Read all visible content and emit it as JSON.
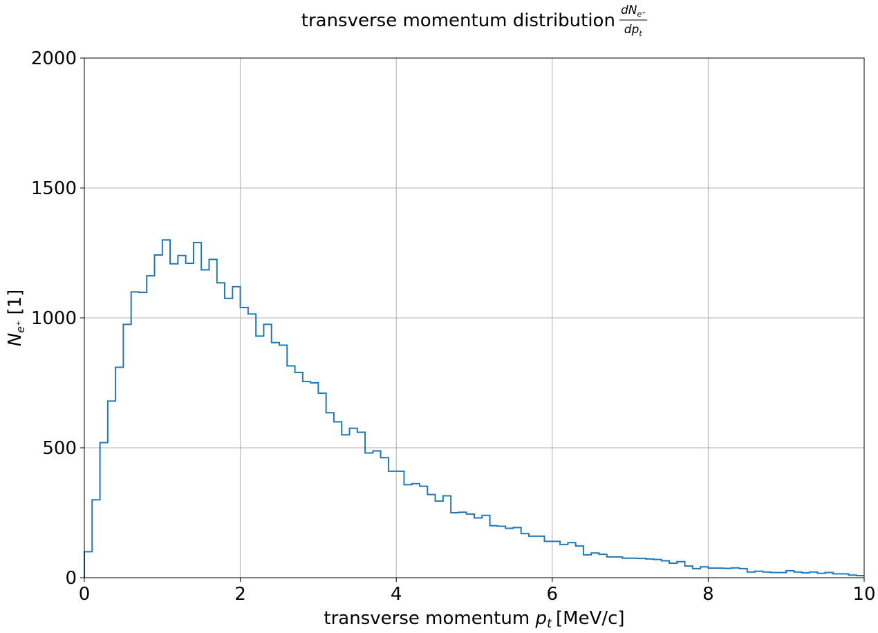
{
  "chart_data": {
    "type": "histogram-step",
    "title": "transverse momentum distribution",
    "title_formula": {
      "numerator": "dN",
      "numerator_sub": "e⁺",
      "denominator": "dp",
      "denominator_sub": "t"
    },
    "xlabel": {
      "prefix": "transverse momentum ",
      "symbol": "p",
      "symbol_sub": "t",
      "units": "[MeV/c]"
    },
    "ylabel": {
      "symbol": "N",
      "symbol_sub": "e⁺",
      "units": "[1]"
    },
    "xlim": [
      0,
      10
    ],
    "ylim": [
      0,
      2000
    ],
    "xticks": [
      0,
      2,
      4,
      6,
      8,
      10
    ],
    "xtick_labels": [
      "0",
      "2",
      "4",
      "6",
      "8",
      "10"
    ],
    "yticks": [
      0,
      500,
      1000,
      1500,
      2000
    ],
    "ytick_labels": [
      "0",
      "500",
      "1000",
      "1500",
      "2000"
    ],
    "grid": true,
    "line_color": "#1f77b4",
    "grid_color": "#b0b0b0",
    "bin_edges_start": 0,
    "bin_width": 0.1,
    "values": [
      100,
      300,
      520,
      680,
      810,
      975,
      1100,
      1098,
      1162,
      1242,
      1300,
      1208,
      1240,
      1210,
      1290,
      1185,
      1225,
      1135,
      1075,
      1120,
      1040,
      1015,
      930,
      975,
      905,
      895,
      815,
      790,
      755,
      750,
      710,
      635,
      600,
      550,
      575,
      560,
      480,
      488,
      462,
      410,
      410,
      358,
      362,
      352,
      320,
      295,
      315,
      250,
      252,
      245,
      230,
      240,
      200,
      198,
      190,
      193,
      170,
      160,
      160,
      140,
      140,
      128,
      135,
      122,
      88,
      95,
      90,
      80,
      80,
      75,
      75,
      74,
      72,
      70,
      65,
      56,
      62,
      45,
      35,
      42,
      37,
      37,
      36,
      38,
      35,
      22,
      25,
      22,
      20,
      20,
      27,
      22,
      19,
      22,
      17,
      20,
      15,
      15,
      10,
      8
    ]
  }
}
